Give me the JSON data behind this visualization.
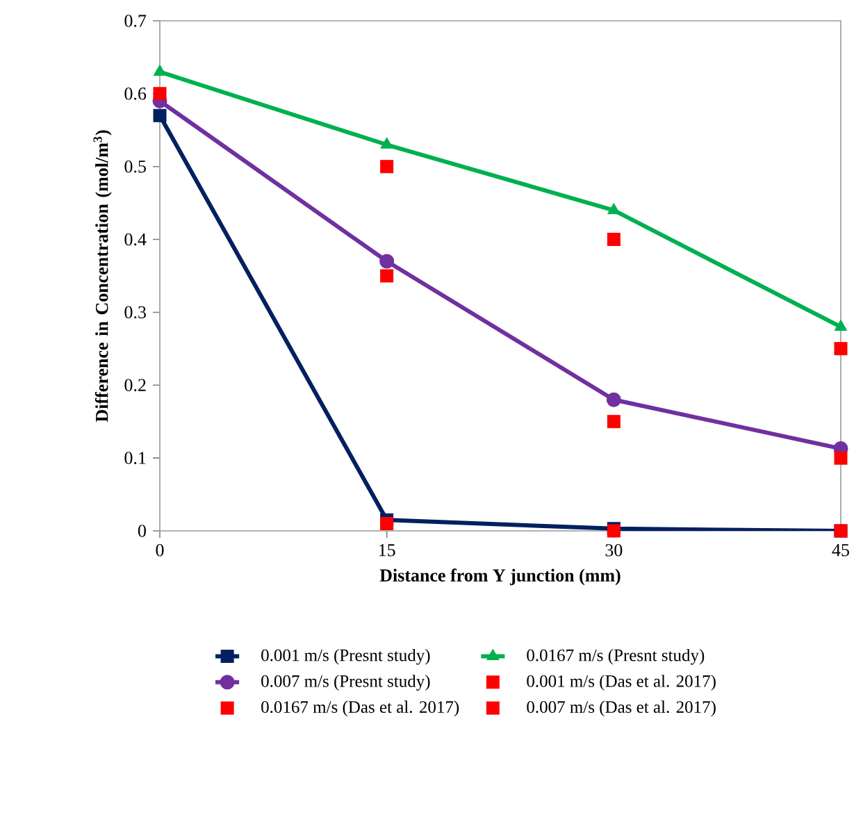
{
  "chart_data": {
    "type": "line",
    "xlabel": "Distance from Y junction (mm)",
    "ylabel": "Difference in Concentration (mol/m$^{3}$)",
    "x": [
      0,
      15,
      30,
      45
    ],
    "xlim": [
      0,
      45
    ],
    "xticks": [
      0,
      15,
      30,
      45
    ],
    "ylim": [
      0,
      0.7
    ],
    "yticks": [
      0,
      0.1,
      0.2,
      0.3,
      0.4,
      0.5,
      0.6,
      0.7
    ],
    "grid": false,
    "legend": "bottom",
    "series": [
      {
        "name": "0.001 m/s (Presnt study)",
        "color": "#002060",
        "marker": "square",
        "values": [
          0.57,
          0.015,
          0.003,
          0.0
        ]
      },
      {
        "name": "0.0167 m/s (Presnt study)",
        "color": "#00b050",
        "marker": "triangle",
        "values": [
          0.63,
          0.53,
          0.44,
          0.28
        ]
      },
      {
        "name": "0.007 m/s (Presnt study)",
        "color": "#7030a0",
        "marker": "circle",
        "values": [
          0.59,
          0.37,
          0.18,
          0.113
        ]
      },
      {
        "name": "0.001 m/s (Das et al. 2017)",
        "type": "scatter",
        "color": "#ff0000",
        "marker": "square",
        "x": [
          15,
          30,
          45
        ],
        "values": [
          0.01,
          0.0,
          0.0
        ]
      },
      {
        "name": "0.0167 m/s (Das et al. 2017)",
        "type": "scatter",
        "color": "#ff0000",
        "marker": "square",
        "x": [
          15,
          30,
          45
        ],
        "values": [
          0.5,
          0.4,
          0.25
        ]
      },
      {
        "name": "0.007 m/s (Das et al. 2017)",
        "type": "scatter",
        "color": "#ff0000",
        "marker": "square",
        "values": [
          0.6,
          0.35,
          0.15,
          0.1
        ]
      }
    ]
  }
}
